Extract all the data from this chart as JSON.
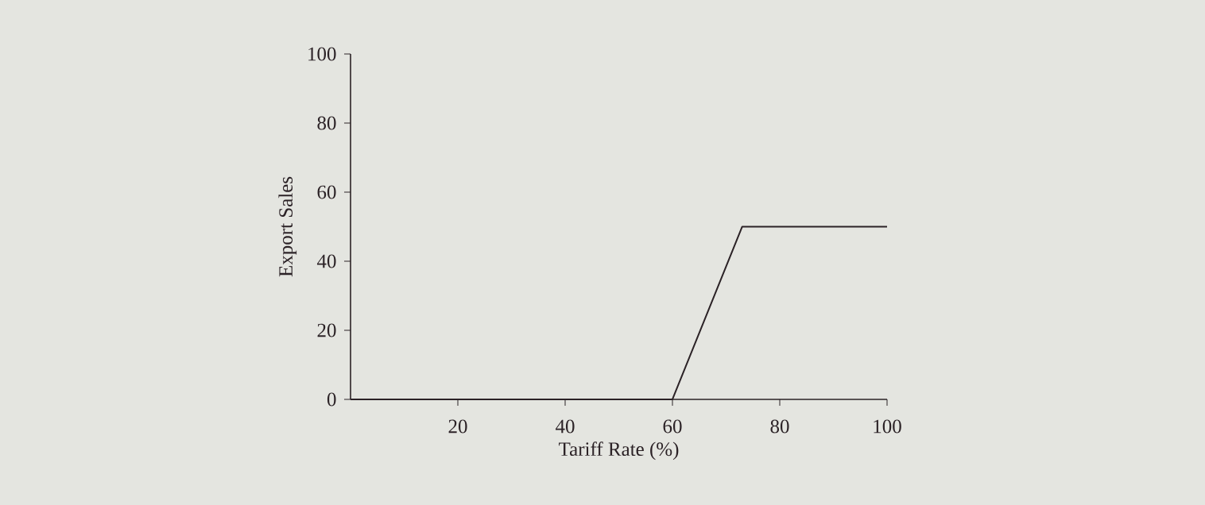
{
  "chart_data": {
    "type": "line",
    "xlabel": "Tariff Rate (%)",
    "ylabel": "Export Sales",
    "x": [
      0,
      60,
      73,
      100
    ],
    "values": [
      0,
      0,
      50,
      50
    ],
    "color": "#2b2226",
    "line_style": "solid",
    "xlim": [
      0,
      100
    ],
    "ylim": [
      0,
      100
    ],
    "xticks": [
      20,
      40,
      60,
      80,
      100
    ],
    "yticks": [
      0,
      20,
      40,
      60,
      80,
      100
    ]
  }
}
